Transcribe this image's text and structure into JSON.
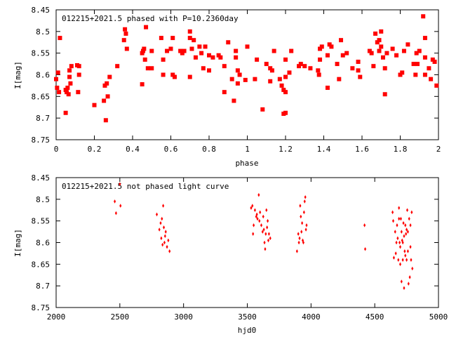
{
  "chart_data": [
    {
      "type": "scatter",
      "title": "012215+2021.5 phased with P=10.2360day",
      "xlabel": "phase",
      "ylabel": "I[mag]",
      "xlim": [
        0,
        2
      ],
      "ylim": [
        8.75,
        8.45
      ],
      "y_inverted": true,
      "x_ticks": [
        0,
        0.2,
        0.4,
        0.6,
        0.8,
        1,
        1.2,
        1.4,
        1.6,
        1.8,
        2
      ],
      "x_tick_labels": [
        "0",
        "0.2",
        "0.4",
        "0.6",
        "0.8",
        "1",
        "1.2",
        "1.4",
        "1.6",
        "1.8",
        "2"
      ],
      "y_ticks": [
        8.45,
        8.5,
        8.55,
        8.6,
        8.65,
        8.7,
        8.75
      ],
      "y_tick_labels": [
        "8.45",
        "8.5",
        "8.55",
        "8.6",
        "8.65",
        "8.7",
        "8.75"
      ],
      "marker_color": "#ff0000",
      "marker_style": "filled-square",
      "points": [
        [
          0.0,
          8.61
        ],
        [
          0.005,
          8.63
        ],
        [
          0.01,
          8.595
        ],
        [
          0.015,
          8.64
        ],
        [
          0.02,
          8.515
        ],
        [
          0.05,
          8.635
        ],
        [
          0.055,
          8.64
        ],
        [
          0.06,
          8.63
        ],
        [
          0.065,
          8.645
        ],
        [
          0.05,
          8.688
        ],
        [
          0.07,
          8.59
        ],
        [
          0.075,
          8.62
        ],
        [
          0.08,
          8.58
        ],
        [
          0.07,
          8.605
        ],
        [
          0.11,
          8.578
        ],
        [
          0.12,
          8.58
        ],
        [
          0.12,
          8.6
        ],
        [
          0.115,
          8.64
        ],
        [
          0.2,
          8.67
        ],
        [
          0.25,
          8.66
        ],
        [
          0.255,
          8.625
        ],
        [
          0.26,
          8.705
        ],
        [
          0.265,
          8.62
        ],
        [
          0.27,
          8.65
        ],
        [
          0.28,
          8.605
        ],
        [
          0.32,
          8.58
        ],
        [
          0.355,
          8.52
        ],
        [
          0.36,
          8.495
        ],
        [
          0.365,
          8.505
        ],
        [
          0.37,
          8.54
        ],
        [
          0.45,
          8.55
        ],
        [
          0.455,
          8.545
        ],
        [
          0.46,
          8.54
        ],
        [
          0.465,
          8.565
        ],
        [
          0.47,
          8.49
        ],
        [
          0.45,
          8.622
        ],
        [
          0.48,
          8.585
        ],
        [
          0.5,
          8.545
        ],
        [
          0.5,
          8.585
        ],
        [
          0.55,
          8.515
        ],
        [
          0.56,
          8.565
        ],
        [
          0.56,
          8.6
        ],
        [
          0.58,
          8.545
        ],
        [
          0.6,
          8.54
        ],
        [
          0.61,
          8.515
        ],
        [
          0.61,
          8.6
        ],
        [
          0.62,
          8.605
        ],
        [
          0.65,
          8.545
        ],
        [
          0.66,
          8.55
        ],
        [
          0.67,
          8.545
        ],
        [
          0.7,
          8.5
        ],
        [
          0.7,
          8.515
        ],
        [
          0.71,
          8.54
        ],
        [
          0.72,
          8.52
        ],
        [
          0.7,
          8.605
        ],
        [
          0.73,
          8.56
        ],
        [
          0.75,
          8.535
        ],
        [
          0.76,
          8.55
        ],
        [
          0.77,
          8.585
        ],
        [
          0.78,
          8.535
        ],
        [
          0.8,
          8.555
        ],
        [
          0.8,
          8.59
        ],
        [
          0.82,
          8.56
        ],
        [
          0.85,
          8.555
        ],
        [
          0.86,
          8.56
        ],
        [
          0.88,
          8.58
        ],
        [
          0.88,
          8.64
        ],
        [
          0.9,
          8.525
        ],
        [
          0.92,
          8.61
        ],
        [
          0.93,
          8.66
        ],
        [
          0.94,
          8.545
        ],
        [
          0.94,
          8.56
        ],
        [
          0.95,
          8.59
        ],
        [
          0.96,
          8.6
        ],
        [
          0.95,
          8.62
        ],
        [
          0.99,
          8.612
        ],
        [
          1.0,
          8.535
        ],
        [
          1.04,
          8.61
        ],
        [
          1.05,
          8.565
        ],
        [
          1.08,
          8.68
        ],
        [
          1.1,
          8.575
        ],
        [
          1.12,
          8.615
        ],
        [
          1.12,
          8.585
        ],
        [
          1.13,
          8.59
        ],
        [
          1.14,
          8.545
        ],
        [
          1.17,
          8.61
        ],
        [
          1.18,
          8.625
        ],
        [
          1.19,
          8.635
        ],
        [
          1.2,
          8.64
        ],
        [
          1.2,
          8.605
        ],
        [
          1.19,
          8.69
        ],
        [
          1.2,
          8.688
        ],
        [
          1.2,
          8.565
        ],
        [
          1.22,
          8.595
        ],
        [
          1.23,
          8.545
        ],
        [
          1.27,
          8.58
        ],
        [
          1.28,
          8.575
        ],
        [
          1.3,
          8.58
        ],
        [
          1.33,
          8.585
        ],
        [
          1.37,
          8.59
        ],
        [
          1.375,
          8.6
        ],
        [
          1.38,
          8.54
        ],
        [
          1.39,
          8.535
        ],
        [
          1.38,
          8.565
        ],
        [
          1.42,
          8.555
        ],
        [
          1.42,
          8.63
        ],
        [
          1.43,
          8.53
        ],
        [
          1.44,
          8.535
        ],
        [
          1.47,
          8.575
        ],
        [
          1.48,
          8.61
        ],
        [
          1.49,
          8.52
        ],
        [
          1.5,
          8.555
        ],
        [
          1.52,
          8.55
        ],
        [
          1.55,
          8.585
        ],
        [
          1.58,
          8.57
        ],
        [
          1.58,
          8.59
        ],
        [
          1.59,
          8.605
        ],
        [
          1.64,
          8.545
        ],
        [
          1.65,
          8.55
        ],
        [
          1.66,
          8.58
        ],
        [
          1.67,
          8.505
        ],
        [
          1.68,
          8.525
        ],
        [
          1.69,
          8.545
        ],
        [
          1.69,
          8.52
        ],
        [
          1.7,
          8.535
        ],
        [
          1.7,
          8.5
        ],
        [
          1.71,
          8.56
        ],
        [
          1.72,
          8.585
        ],
        [
          1.72,
          8.645
        ],
        [
          1.73,
          8.55
        ],
        [
          1.76,
          8.54
        ],
        [
          1.78,
          8.555
        ],
        [
          1.8,
          8.6
        ],
        [
          1.81,
          8.595
        ],
        [
          1.82,
          8.545
        ],
        [
          1.84,
          8.53
        ],
        [
          1.87,
          8.575
        ],
        [
          1.88,
          8.6
        ],
        [
          1.885,
          8.55
        ],
        [
          1.89,
          8.575
        ],
        [
          1.92,
          8.465
        ],
        [
          1.93,
          8.515
        ],
        [
          1.93,
          8.56
        ],
        [
          1.93,
          8.6
        ],
        [
          1.9,
          8.545
        ],
        [
          1.95,
          8.585
        ],
        [
          1.96,
          8.61
        ],
        [
          1.97,
          8.565
        ],
        [
          1.98,
          8.57
        ],
        [
          1.99,
          8.625
        ]
      ]
    },
    {
      "type": "scatter",
      "title": "012215+2021.5 not phased light curve",
      "xlabel": "hjd0",
      "ylabel": "I[mag]",
      "xlim": [
        2000,
        5000
      ],
      "ylim": [
        8.75,
        8.45
      ],
      "y_inverted": true,
      "x_ticks": [
        2000,
        2500,
        3000,
        3500,
        4000,
        4500,
        5000
      ],
      "x_tick_labels": [
        "2000",
        "2500",
        "3000",
        "3500",
        "4000",
        "4500",
        "5000"
      ],
      "y_ticks": [
        8.45,
        8.5,
        8.55,
        8.6,
        8.65,
        8.7,
        8.75
      ],
      "y_tick_labels": [
        "8.45",
        "8.5",
        "8.55",
        "8.6",
        "8.65",
        "8.7",
        "8.75"
      ],
      "marker_color": "#ff0000",
      "marker_style": "filled-diamond",
      "points": [
        [
          2460,
          8.505
        ],
        [
          2470,
          8.532
        ],
        [
          2500,
          8.465
        ],
        [
          2505,
          8.515
        ],
        [
          2790,
          8.535
        ],
        [
          2810,
          8.57
        ],
        [
          2820,
          8.555
        ],
        [
          2825,
          8.59
        ],
        [
          2830,
          8.545
        ],
        [
          2840,
          8.515
        ],
        [
          2845,
          8.565
        ],
        [
          2850,
          8.6
        ],
        [
          2855,
          8.585
        ],
        [
          2860,
          8.575
        ],
        [
          2870,
          8.61
        ],
        [
          2880,
          8.595
        ],
        [
          2890,
          8.62
        ],
        [
          2835,
          8.605
        ],
        [
          3530,
          8.52
        ],
        [
          3540,
          8.515
        ],
        [
          3545,
          8.58
        ],
        [
          3550,
          8.56
        ],
        [
          3560,
          8.525
        ],
        [
          3570,
          8.54
        ],
        [
          3575,
          8.535
        ],
        [
          3580,
          8.545
        ],
        [
          3590,
          8.49
        ],
        [
          3595,
          8.55
        ],
        [
          3600,
          8.53
        ],
        [
          3610,
          8.56
        ],
        [
          3620,
          8.575
        ],
        [
          3625,
          8.54
        ],
        [
          3630,
          8.57
        ],
        [
          3635,
          8.6
        ],
        [
          3640,
          8.615
        ],
        [
          3645,
          8.58
        ],
        [
          3650,
          8.525
        ],
        [
          3655,
          8.565
        ],
        [
          3660,
          8.55
        ],
        [
          3665,
          8.595
        ],
        [
          3670,
          8.58
        ],
        [
          3680,
          8.59
        ],
        [
          3890,
          8.62
        ],
        [
          3900,
          8.58
        ],
        [
          3905,
          8.6
        ],
        [
          3910,
          8.59
        ],
        [
          3915,
          8.515
        ],
        [
          3920,
          8.54
        ],
        [
          3925,
          8.575
        ],
        [
          3930,
          8.555
        ],
        [
          3935,
          8.595
        ],
        [
          3940,
          8.6
        ],
        [
          3945,
          8.53
        ],
        [
          3950,
          8.505
        ],
        [
          3955,
          8.495
        ],
        [
          3960,
          8.57
        ],
        [
          3965,
          8.56
        ],
        [
          4420,
          8.56
        ],
        [
          4425,
          8.615
        ],
        [
          4640,
          8.53
        ],
        [
          4645,
          8.55
        ],
        [
          4650,
          8.635
        ],
        [
          4660,
          8.575
        ],
        [
          4665,
          8.625
        ],
        [
          4670,
          8.6
        ],
        [
          4675,
          8.56
        ],
        [
          4680,
          8.59
        ],
        [
          4685,
          8.64
        ],
        [
          4690,
          8.52
        ],
        [
          4695,
          8.6
        ],
        [
          4700,
          8.65
        ],
        [
          4705,
          8.545
        ],
        [
          4710,
          8.69
        ],
        [
          4715,
          8.595
        ],
        [
          4720,
          8.64
        ],
        [
          4725,
          8.555
        ],
        [
          4730,
          8.705
        ],
        [
          4735,
          8.62
        ],
        [
          4740,
          8.56
        ],
        [
          4745,
          8.58
        ],
        [
          4750,
          8.64
        ],
        [
          4755,
          8.525
        ],
        [
          4760,
          8.575
        ],
        [
          4765,
          8.695
        ],
        [
          4770,
          8.545
        ],
        [
          4775,
          8.68
        ],
        [
          4780,
          8.56
        ],
        [
          4785,
          8.64
        ],
        [
          4790,
          8.53
        ],
        [
          4795,
          8.66
        ],
        [
          4700,
          8.61
        ],
        [
          4710,
          8.575
        ],
        [
          4720,
          8.6
        ],
        [
          4740,
          8.63
        ],
        [
          4760,
          8.62
        ],
        [
          4780,
          8.61
        ],
        [
          4750,
          8.57
        ],
        [
          4730,
          8.585
        ],
        [
          4690,
          8.545
        ]
      ]
    }
  ]
}
